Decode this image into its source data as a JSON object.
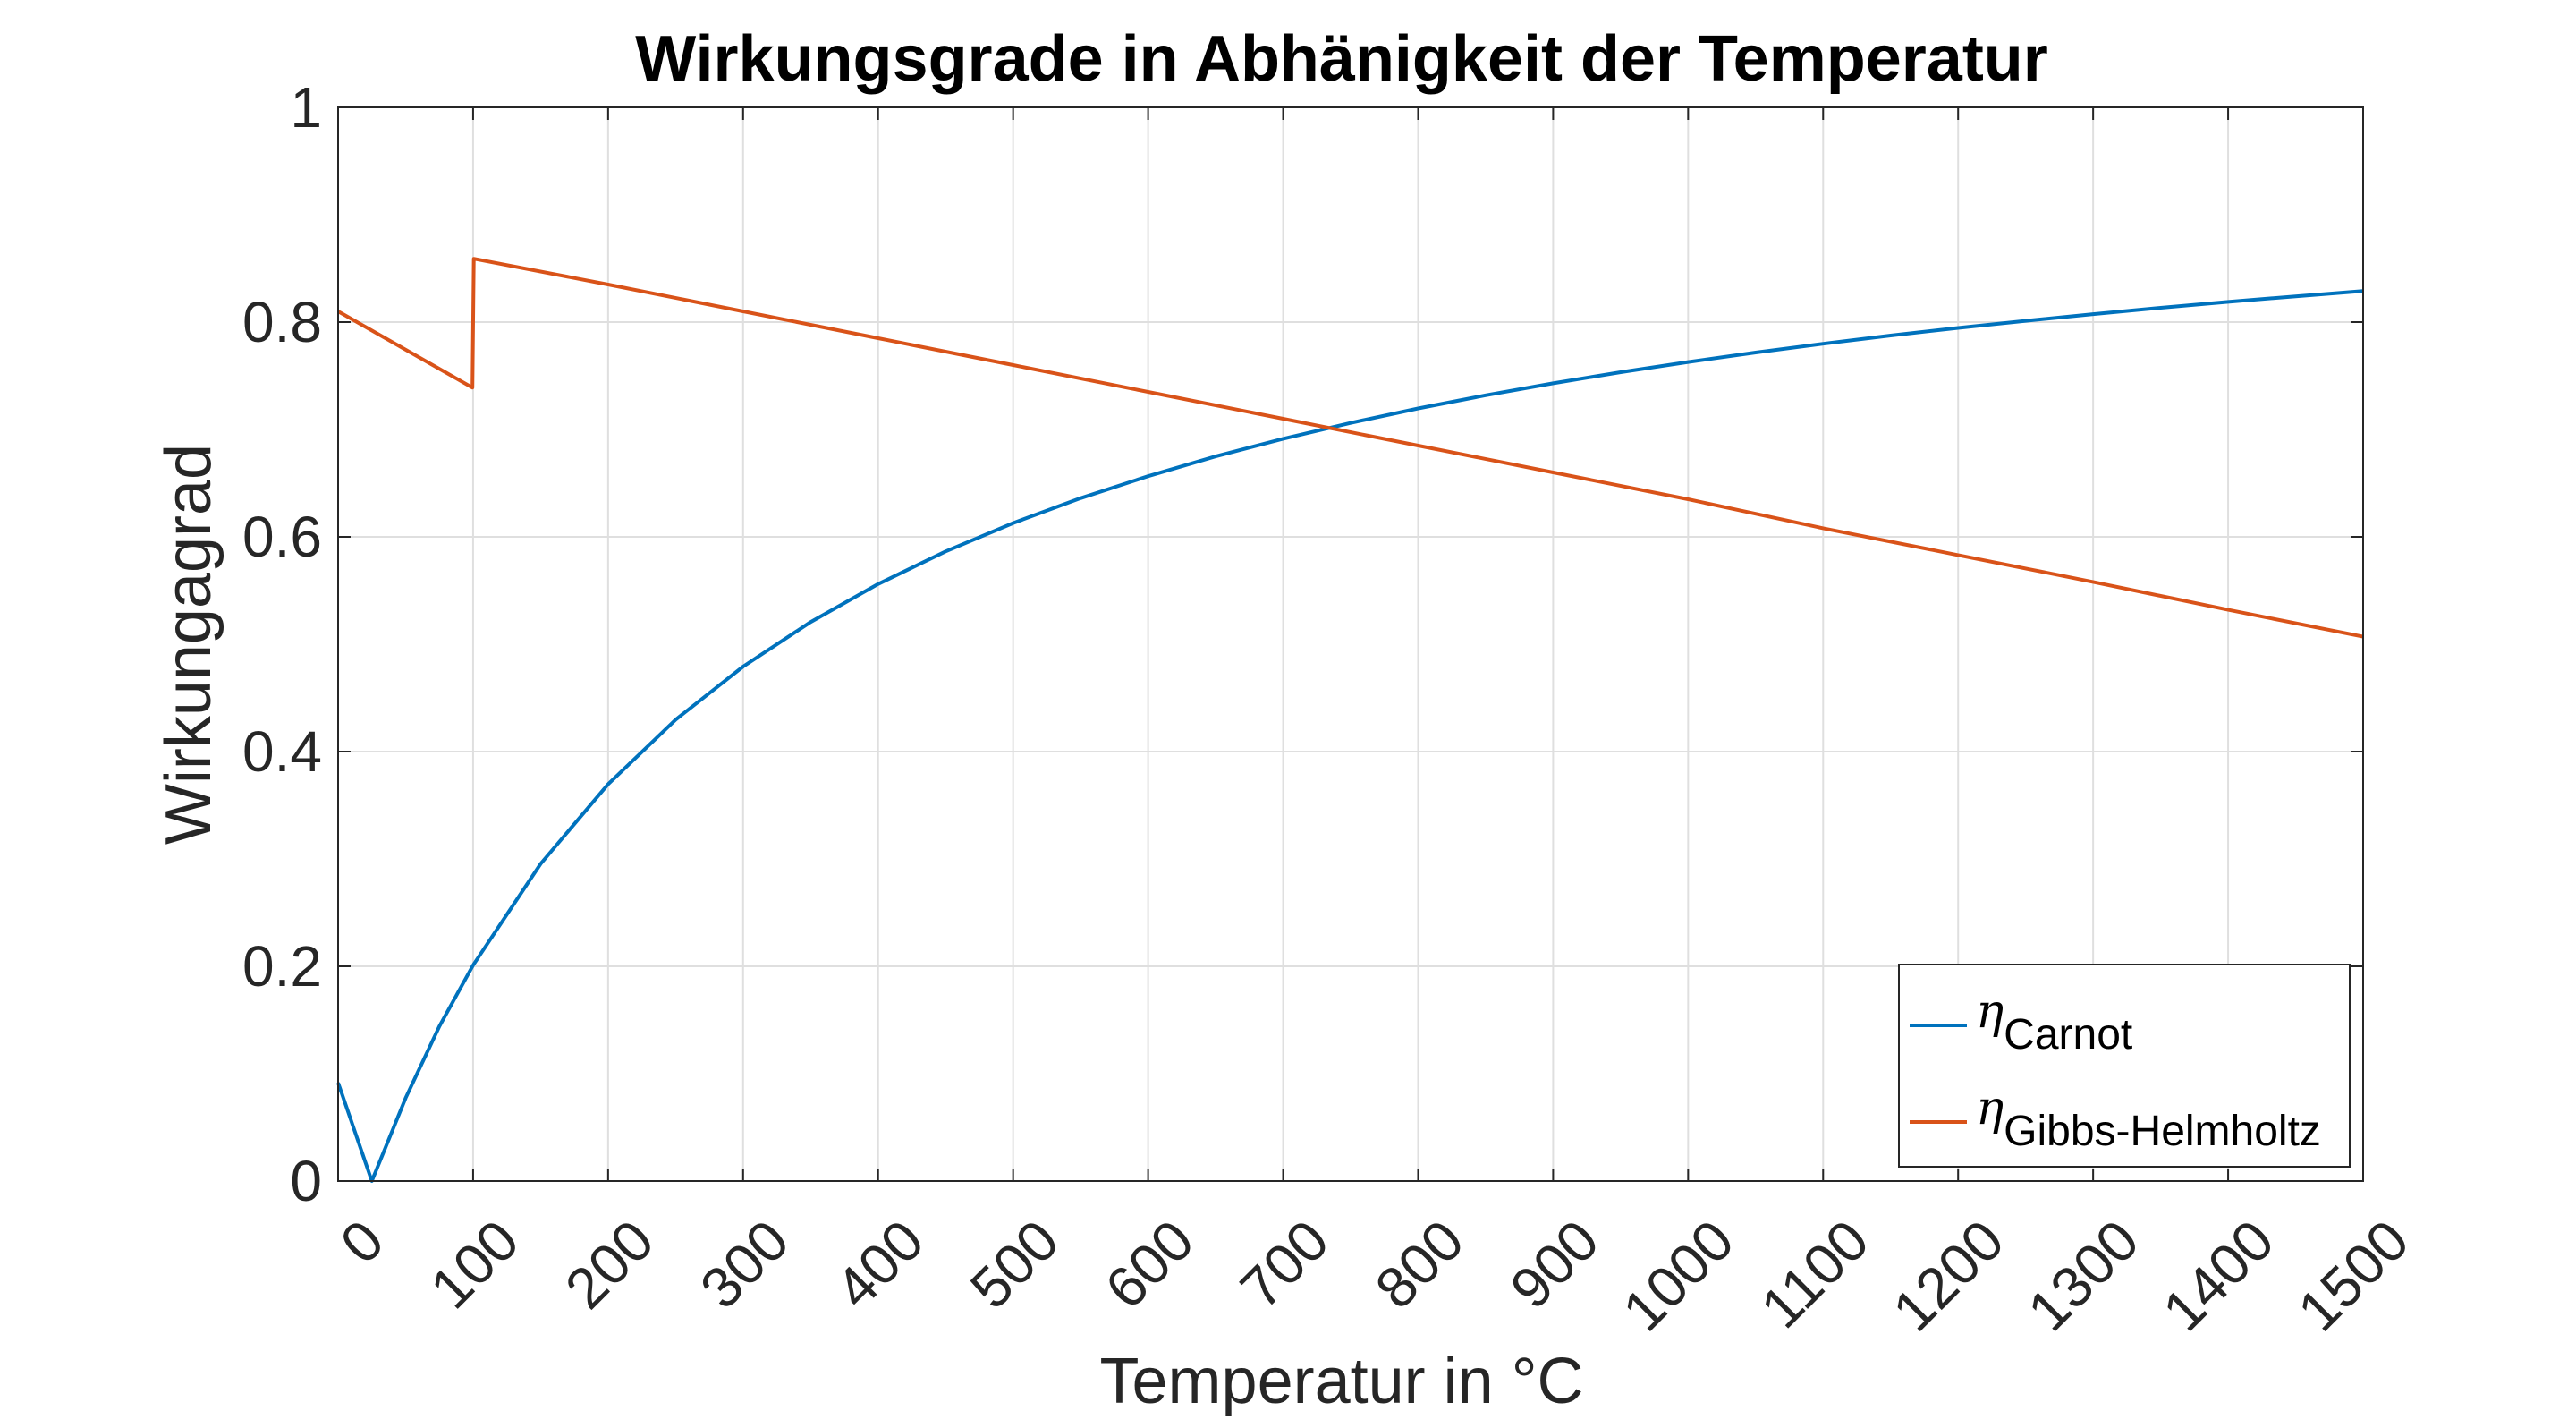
{
  "chart_data": {
    "type": "line",
    "title": "Wirkungsgrade in Abhänigkeit der Temperatur",
    "xlabel": "Temperatur in °C",
    "ylabel": "Wirkungagrad",
    "xlim": [
      0,
      1500
    ],
    "ylim": [
      0,
      1
    ],
    "xticks": [
      0,
      100,
      200,
      300,
      400,
      500,
      600,
      700,
      800,
      900,
      1000,
      1100,
      1200,
      1300,
      1400,
      1500
    ],
    "xtick_labels": [
      "0",
      "100",
      "200",
      "300",
      "400",
      "500",
      "600",
      "700",
      "800",
      "900",
      "1000",
      "1100",
      "1200",
      "1300",
      "1400",
      "1500"
    ],
    "yticks": [
      0,
      0.2,
      0.4,
      0.6,
      0.8,
      1
    ],
    "ytick_labels": [
      "0",
      "0.2",
      "0.4",
      "0.6",
      "0.8",
      "1"
    ],
    "grid": true,
    "legend_position": "bottom-right",
    "series": [
      {
        "name": "η_Carnot",
        "legend_symbol": "η",
        "legend_subscript": "Carnot",
        "color": "#0072BD",
        "x": [
          0,
          25,
          50,
          75,
          100,
          150,
          200,
          250,
          300,
          350,
          400,
          450,
          500,
          550,
          600,
          650,
          700,
          750,
          800,
          850,
          900,
          950,
          1000,
          1050,
          1100,
          1150,
          1200,
          1250,
          1300,
          1350,
          1400,
          1450,
          1500
        ],
        "y": [
          0.0916,
          0.0,
          0.0773,
          0.1441,
          0.201,
          0.2954,
          0.3697,
          0.4297,
          0.4792,
          0.5207,
          0.556,
          0.5864,
          0.6128,
          0.636,
          0.6565,
          0.6749,
          0.6913,
          0.7061,
          0.7196,
          0.7318,
          0.743,
          0.7533,
          0.7628,
          0.7717,
          0.7798,
          0.7875,
          0.7946,
          0.8012,
          0.8074,
          0.8133,
          0.8188,
          0.824,
          0.829
        ]
      },
      {
        "name": "η_Gibbs-Helmholtz",
        "legend_symbol": "η",
        "legend_subscript": "Gibbs-Helmholtz",
        "color": "#D95319",
        "x": [
          0,
          99.5,
          100.5,
          200,
          300,
          400,
          500,
          600,
          700,
          800,
          900,
          1000,
          1100,
          1200,
          1300,
          1400,
          1500
        ],
        "y": [
          0.81,
          0.739,
          0.859,
          0.835,
          0.81,
          0.785,
          0.76,
          0.735,
          0.71,
          0.685,
          0.66,
          0.635,
          0.608,
          0.583,
          0.558,
          0.532,
          0.507
        ]
      }
    ]
  }
}
